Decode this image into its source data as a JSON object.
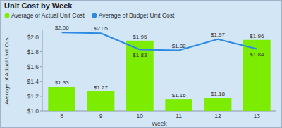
{
  "chart_data": {
    "type": "bar",
    "title": "Unit Cost by Week",
    "x_label": "Week",
    "y_label": "Average of Actual Unit Cost",
    "categories": [
      "8",
      "9",
      "10",
      "11",
      "12",
      "13"
    ],
    "series": [
      {
        "name": "Average of Actual Unit Cost",
        "type": "bar",
        "color": "#7ced00",
        "values": [
          1.33,
          1.27,
          1.95,
          1.16,
          1.18,
          1.96
        ],
        "value_labels": [
          "$1.33",
          "$1.27",
          "$1.95",
          "$1.16",
          "$1.18",
          "$1.96"
        ]
      },
      {
        "name": "Average of Budget Unit Cost",
        "type": "line",
        "color": "#2a8be6",
        "values": [
          2.06,
          2.05,
          1.83,
          1.82,
          1.97,
          1.84
        ],
        "value_labels": [
          "$2.06",
          "$2.05",
          "$1.83",
          "$1.82",
          "$1.97",
          "$1.84"
        ]
      }
    ],
    "ylim": [
      1.0,
      2.1
    ],
    "yticks": [
      {
        "value": 1.0,
        "label": "$1.0"
      },
      {
        "value": 1.2,
        "label": "$1.2"
      },
      {
        "value": 1.4,
        "label": "$1.4"
      },
      {
        "value": 1.6,
        "label": "$1.6"
      },
      {
        "value": 1.8,
        "label": "$1.8"
      },
      {
        "value": 2.0,
        "label": "$2.0"
      }
    ],
    "grid": false,
    "data_labels": true,
    "legend": "top-left"
  }
}
